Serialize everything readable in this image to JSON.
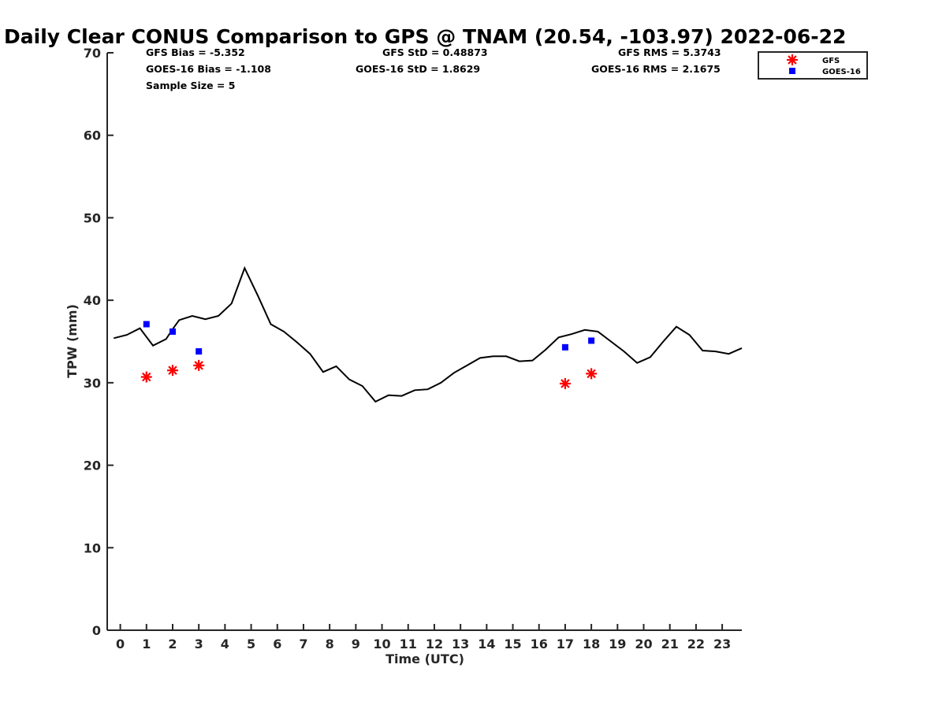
{
  "chart_data": {
    "type": "line",
    "title": "Daily Clear CONUS Comparison to GPS @ TNAM (20.54, -103.97) 2022-06-22",
    "xlabel": "Time (UTC)",
    "ylabel": "TPW (mm)",
    "xlim": [
      -0.5,
      23.75
    ],
    "ylim": [
      0,
      70
    ],
    "x_ticks": [
      "0",
      "1",
      "2",
      "3",
      "4",
      "5",
      "6",
      "7",
      "8",
      "9",
      "10",
      "11",
      "12",
      "13",
      "14",
      "15",
      "16",
      "17",
      "18",
      "19",
      "20",
      "21",
      "22",
      "23"
    ],
    "y_ticks": [
      "0",
      "10",
      "20",
      "30",
      "40",
      "50",
      "60",
      "70"
    ],
    "grid": false,
    "legend_position": "top-right",
    "stats": {
      "gfs_bias": "GFS Bias = -5.352",
      "goes_bias": "GOES-16 Bias = -1.108",
      "sample_size": "Sample Size = 5",
      "gfs_std": "GFS StD = 0.48873",
      "goes_std": "GOES-16 StD = 1.8629",
      "gfs_rms": "GFS RMS = 5.3743",
      "goes_rms": "GOES-16 RMS = 2.1675"
    },
    "series": [
      {
        "name": "",
        "kind": "line",
        "color": "#000000",
        "x": [
          -0.25,
          0.25,
          0.75,
          1.25,
          1.75,
          2.0,
          2.25,
          2.75,
          3.25,
          3.75,
          4.25,
          4.75,
          5.25,
          5.75,
          6.25,
          6.75,
          7.25,
          7.75,
          8.25,
          8.75,
          9.25,
          9.75,
          10.25,
          10.75,
          11.25,
          11.75,
          12.25,
          12.75,
          13.25,
          13.75,
          14.25,
          14.75,
          15.25,
          15.75,
          16.25,
          16.75,
          17.25,
          17.75,
          18.25,
          18.75,
          19.25,
          19.75,
          20.25,
          20.75,
          21.25,
          21.75,
          22.25,
          22.75,
          23.25,
          23.75
        ],
        "y": [
          35.4,
          35.8,
          36.6,
          34.5,
          35.3,
          36.5,
          37.6,
          38.1,
          37.7,
          38.1,
          39.6,
          43.9,
          40.6,
          37.1,
          36.2,
          34.9,
          33.5,
          31.3,
          32.0,
          30.4,
          29.6,
          27.7,
          28.5,
          28.4,
          29.1,
          29.2,
          30.0,
          31.2,
          32.1,
          33.0,
          33.2,
          33.2,
          32.6,
          32.7,
          34.0,
          35.5,
          35.9,
          36.4,
          36.2,
          35.0,
          33.8,
          32.4,
          33.1,
          35.0,
          36.8,
          35.8,
          33.9,
          33.8,
          33.5,
          34.2
        ]
      },
      {
        "name": "GFS",
        "kind": "scatter",
        "marker": "asterisk",
        "color": "#ff0000",
        "x": [
          1,
          2,
          3,
          17,
          18
        ],
        "y": [
          30.7,
          31.5,
          32.1,
          29.9,
          31.1
        ]
      },
      {
        "name": "GOES-16",
        "kind": "scatter",
        "marker": "square",
        "color": "#0000ff",
        "x": [
          1,
          2,
          3,
          17,
          18
        ],
        "y": [
          37.1,
          36.2,
          33.8,
          34.3,
          35.1
        ]
      }
    ]
  }
}
